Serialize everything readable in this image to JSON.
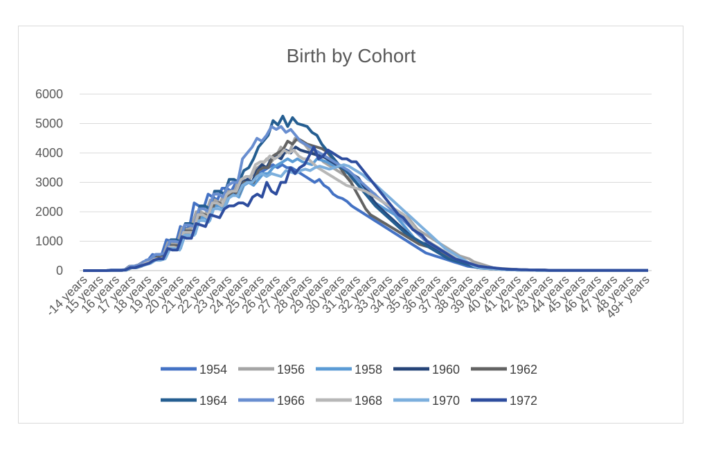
{
  "chart_data": {
    "type": "line",
    "title": "Birth by Cohort",
    "xlabel": "",
    "ylabel": "",
    "ylim": [
      0,
      6000
    ],
    "y_ticks": [
      0,
      1000,
      2000,
      3000,
      4000,
      5000,
      6000
    ],
    "grid": true,
    "legend_position": "bottom",
    "x_tick_labels": [
      "-14 years",
      "15 years",
      "16 years",
      "17 years",
      "18 years",
      "19 years",
      "20 years",
      "21 years",
      "22 years",
      "23 years",
      "24 years",
      "25 years",
      "26 years",
      "27 years",
      "28 years",
      "29 years",
      "30 years",
      "31 years",
      "32 years",
      "33 years",
      "34 years",
      "35 years",
      "36 years",
      "37 years",
      "38 years",
      "39 years",
      "40 years",
      "41 years",
      "42 years",
      "43 years",
      "44 years",
      "45 years",
      "46 years",
      "47 years",
      "48 years",
      "49+ years"
    ],
    "series": [
      {
        "name": "1954",
        "color": "#4472c4",
        "values": [
          0,
          0,
          0,
          0,
          0,
          0,
          20,
          20,
          20,
          30,
          150,
          150,
          200,
          300,
          350,
          550,
          500,
          550,
          1050,
          1000,
          900,
          1500,
          1400,
          1500,
          2300,
          2200,
          2100,
          2600,
          2500,
          2400,
          2800,
          2800,
          2700,
          3000,
          3100,
          3000,
          3200,
          3300,
          3300,
          3400,
          3500,
          3600,
          3500,
          3600,
          3500,
          3500,
          3400,
          3300,
          3200,
          3100,
          3000,
          3100,
          2900,
          2800,
          2600,
          2500,
          2450,
          2350,
          2200,
          2100,
          2000,
          1900,
          1800,
          1700,
          1600,
          1500,
          1400,
          1300,
          1200,
          1100,
          1000,
          900,
          800,
          700,
          600,
          550,
          500,
          450,
          400,
          350,
          300,
          250,
          200,
          150,
          130,
          110,
          100,
          80,
          70,
          60,
          50,
          40,
          40,
          30,
          30,
          30,
          20,
          20,
          20,
          20,
          10,
          10,
          10,
          10,
          10,
          10,
          10,
          10,
          10,
          10,
          10,
          10,
          10,
          10,
          10,
          10,
          10,
          10,
          10,
          10,
          10,
          10,
          10
        ]
      },
      {
        "name": "1956",
        "color": "#a5a5a5",
        "values": [
          0,
          0,
          0,
          0,
          0,
          0,
          20,
          20,
          20,
          30,
          150,
          150,
          200,
          300,
          350,
          500,
          450,
          500,
          950,
          900,
          900,
          1450,
          1400,
          1450,
          2000,
          2000,
          1900,
          2400,
          2400,
          2300,
          2600,
          2700,
          2600,
          3100,
          3100,
          3000,
          3300,
          3500,
          3600,
          3800,
          3700,
          3900,
          4200,
          4000,
          4100,
          4500,
          4400,
          4300,
          4100,
          4000,
          3900,
          3700,
          3600,
          3500,
          3400,
          3300,
          3200,
          3100,
          3000,
          2900,
          2800,
          2700,
          2600,
          2400,
          2300,
          2200,
          2100,
          2000,
          1900,
          1800,
          1600,
          1400,
          1300,
          1200,
          1100,
          1000,
          900,
          800,
          700,
          600,
          500,
          450,
          400,
          300,
          250,
          200,
          150,
          100,
          80,
          70,
          60,
          50,
          40,
          30,
          30,
          20,
          20,
          20,
          20,
          10,
          10,
          10,
          10,
          10,
          10,
          10,
          10,
          10,
          10,
          10,
          10,
          10,
          10,
          10,
          10,
          10,
          10,
          10,
          10,
          10,
          10
        ]
      },
      {
        "name": "1958",
        "color": "#5b9bd5",
        "values": [
          0,
          0,
          0,
          0,
          0,
          0,
          10,
          10,
          10,
          20,
          100,
          100,
          150,
          250,
          300,
          400,
          400,
          450,
          800,
          800,
          750,
          1250,
          1200,
          1250,
          1800,
          1800,
          1700,
          2200,
          2200,
          2100,
          2500,
          2600,
          2500,
          2900,
          3000,
          2900,
          3100,
          3300,
          3300,
          3500,
          3600,
          3700,
          3800,
          3700,
          3800,
          3700,
          3650,
          3600,
          3800,
          3750,
          3700,
          3600,
          3550,
          3500,
          3350,
          3250,
          3100,
          2900,
          2700,
          2500,
          2300,
          2200,
          2100,
          2000,
          1900,
          1700,
          1500,
          1300,
          1100,
          1000,
          900,
          800,
          700,
          600,
          500,
          450,
          400,
          300,
          250,
          200,
          150,
          100,
          80,
          70,
          60,
          50,
          40,
          30,
          30,
          20,
          20,
          20,
          20,
          10,
          10,
          10,
          10,
          10,
          10,
          10,
          10,
          10,
          10,
          10,
          10,
          10,
          10,
          10,
          10,
          10,
          10,
          10,
          10,
          10,
          10,
          10,
          10
        ]
      },
      {
        "name": "1960",
        "color": "#264478",
        "values": [
          0,
          0,
          0,
          0,
          0,
          0,
          10,
          10,
          10,
          20,
          100,
          100,
          150,
          250,
          300,
          450,
          450,
          500,
          850,
          850,
          800,
          1300,
          1300,
          1350,
          1900,
          1900,
          1800,
          2300,
          2300,
          2200,
          2600,
          2700,
          2600,
          3000,
          3100,
          3000,
          3400,
          3600,
          3500,
          3800,
          3900,
          3800,
          4100,
          4000,
          4200,
          4100,
          4050,
          4000,
          3950,
          3900,
          3850,
          3750,
          3650,
          3550,
          3450,
          3350,
          3250,
          3150,
          2900,
          2700,
          2400,
          2200,
          2050,
          1900,
          1750,
          1600,
          1450,
          1300,
          1150,
          1050,
          950,
          900,
          800,
          700,
          600,
          500,
          450,
          400,
          300,
          250,
          200,
          150,
          100,
          80,
          70,
          60,
          50,
          40,
          30,
          30,
          20,
          20,
          20,
          20,
          10,
          10,
          10,
          10,
          10,
          10,
          10,
          10,
          10,
          10,
          10,
          10,
          10,
          10,
          10,
          10,
          10,
          10,
          10,
          10,
          10,
          10,
          10,
          10
        ]
      },
      {
        "name": "1962",
        "color": "#636363",
        "values": [
          0,
          0,
          0,
          0,
          0,
          0,
          10,
          10,
          10,
          20,
          100,
          100,
          150,
          250,
          300,
          450,
          450,
          500,
          850,
          850,
          850,
          1350,
          1350,
          1350,
          1900,
          1900,
          1800,
          2300,
          2300,
          2200,
          2600,
          2700,
          2600,
          3000,
          3000,
          3000,
          3400,
          3500,
          3500,
          3900,
          4000,
          4100,
          4400,
          4300,
          4500,
          4400,
          4300,
          4250,
          4200,
          4150,
          4050,
          3850,
          3650,
          3450,
          3200,
          3000,
          2700,
          2400,
          2100,
          1900,
          1800,
          1700,
          1600,
          1500,
          1400,
          1300,
          1200,
          1100,
          1000,
          900,
          850,
          800,
          700,
          600,
          550,
          500,
          400,
          350,
          300,
          250,
          200,
          150,
          100,
          80,
          70,
          60,
          50,
          40,
          30,
          30,
          20,
          20,
          20,
          20,
          10,
          10,
          10,
          10,
          10,
          10,
          10,
          10,
          10,
          10,
          10,
          10,
          10,
          10,
          10,
          10,
          10,
          10,
          10,
          10,
          10,
          10,
          10
        ]
      },
      {
        "name": "1964",
        "color": "#255e91",
        "values": [
          0,
          0,
          0,
          0,
          0,
          0,
          10,
          10,
          10,
          20,
          150,
          150,
          200,
          350,
          400,
          550,
          550,
          600,
          1050,
          1050,
          1000,
          1600,
          1600,
          1550,
          2200,
          2200,
          2100,
          2700,
          2700,
          2600,
          3100,
          3100,
          3000,
          3400,
          3500,
          3800,
          4200,
          4400,
          4600,
          5100,
          4950,
          5250,
          4900,
          5200,
          5000,
          4950,
          4900,
          4700,
          4600,
          4300,
          4100,
          3900,
          3700,
          3500,
          3400,
          3200,
          3000,
          2800,
          2600,
          2400,
          2200,
          2050,
          1900,
          1750,
          1600,
          1450,
          1300,
          1200,
          1100,
          1000,
          900,
          800,
          700,
          600,
          500,
          400,
          350,
          300,
          250,
          200,
          150,
          100,
          80,
          70,
          60,
          50,
          40,
          30,
          30,
          20,
          20,
          20,
          20,
          10,
          10,
          10,
          10,
          10,
          10,
          10,
          10,
          10,
          10,
          10,
          10,
          10,
          10,
          10,
          10,
          10,
          10,
          10,
          10,
          10,
          10,
          10,
          10
        ]
      },
      {
        "name": "1966",
        "color": "#698ed0",
        "values": [
          0,
          0,
          0,
          0,
          0,
          0,
          20,
          20,
          20,
          30,
          150,
          150,
          200,
          350,
          400,
          550,
          550,
          600,
          1000,
          1000,
          950,
          1550,
          1550,
          1500,
          2100,
          2100,
          2000,
          2600,
          2600,
          2500,
          2900,
          3000,
          3000,
          3800,
          4000,
          4200,
          4500,
          4400,
          4600,
          4900,
          4800,
          4900,
          4700,
          4800,
          4600,
          4400,
          4300,
          4200,
          4100,
          4000,
          3900,
          3800,
          3700,
          3600,
          3500,
          3400,
          3250,
          3100,
          2950,
          2800,
          2650,
          2500,
          2350,
          2200,
          2050,
          1900,
          1750,
          1600,
          1450,
          1300,
          1150,
          1000,
          900,
          800,
          700,
          600,
          500,
          400,
          350,
          300,
          250,
          200,
          150,
          100,
          80,
          70,
          60,
          50,
          40,
          30,
          30,
          20,
          20,
          20,
          20,
          10,
          10,
          10,
          10,
          10,
          10,
          10,
          10,
          10,
          10,
          10,
          10,
          10,
          10,
          10,
          10,
          10,
          10,
          10,
          10,
          10,
          10,
          10
        ]
      },
      {
        "name": "1968",
        "color": "#b7b7b7",
        "values": [
          0,
          0,
          0,
          0,
          0,
          0,
          10,
          10,
          10,
          20,
          100,
          100,
          150,
          250,
          300,
          400,
          400,
          450,
          800,
          800,
          750,
          1300,
          1300,
          1300,
          1900,
          1900,
          1800,
          2300,
          2300,
          2200,
          2600,
          2700,
          2700,
          3100,
          3200,
          3200,
          3600,
          3700,
          3700,
          3900,
          3800,
          3900,
          4100,
          4000,
          4100,
          3900,
          3800,
          3800,
          3650,
          3500,
          3400,
          3300,
          3200,
          3100,
          3000,
          2900,
          2850,
          2800,
          2750,
          2700,
          2600,
          2500,
          2400,
          2300,
          2200,
          2100,
          2000,
          1900,
          1700,
          1500,
          1300,
          1150,
          1000,
          900,
          800,
          700,
          600,
          500,
          400,
          350,
          300,
          250,
          200,
          150,
          100,
          80,
          60,
          50,
          40,
          30,
          30,
          20,
          20,
          20,
          20,
          10,
          10,
          10,
          10,
          10,
          10,
          10,
          10,
          10,
          10,
          10,
          10,
          10,
          10,
          10,
          10,
          10,
          10,
          10,
          10,
          10,
          10,
          10,
          10
        ]
      },
      {
        "name": "1970",
        "color": "#7cafdd",
        "values": [
          0,
          0,
          0,
          0,
          0,
          0,
          10,
          10,
          10,
          20,
          100,
          100,
          150,
          200,
          250,
          350,
          350,
          400,
          750,
          750,
          700,
          1200,
          1200,
          1200,
          1700,
          1700,
          1650,
          2100,
          2100,
          2050,
          2450,
          2550,
          2550,
          2900,
          3000,
          3000,
          3200,
          3300,
          3200,
          3300,
          3250,
          3200,
          3400,
          3350,
          3300,
          3400,
          3450,
          3400,
          3500,
          3550,
          3500,
          3450,
          3500,
          3550,
          3600,
          3550,
          3450,
          3350,
          3250,
          3100,
          3000,
          2850,
          2700,
          2550,
          2400,
          2250,
          2100,
          1950,
          1800,
          1650,
          1500,
          1350,
          1200,
          1050,
          900,
          750,
          650,
          550,
          450,
          350,
          250,
          150,
          100,
          80,
          70,
          60,
          50,
          40,
          30,
          30,
          20,
          20,
          20,
          20,
          10,
          10,
          10,
          10,
          10,
          10,
          10,
          10,
          10,
          10,
          10,
          10,
          10,
          10,
          10,
          10,
          10,
          10,
          10,
          10,
          10,
          10,
          10,
          10
        ]
      },
      {
        "name": "1972",
        "color": "#2e4d9e",
        "values": [
          0,
          0,
          0,
          0,
          0,
          0,
          10,
          10,
          10,
          20,
          100,
          100,
          150,
          200,
          250,
          350,
          400,
          400,
          750,
          700,
          700,
          1150,
          1100,
          1100,
          1600,
          1550,
          1500,
          1900,
          1850,
          1800,
          2100,
          2200,
          2200,
          2300,
          2300,
          2200,
          2500,
          2600,
          2500,
          3000,
          2700,
          2600,
          3000,
          3000,
          3500,
          3300,
          3500,
          3600,
          3900,
          4200,
          3800,
          3900,
          4100,
          4000,
          3900,
          3800,
          3800,
          3700,
          3700,
          3500,
          3300,
          3100,
          2900,
          2700,
          2500,
          2300,
          2100,
          1900,
          1800,
          1600,
          1400,
          1300,
          1200,
          1000,
          900,
          800,
          700,
          600,
          500,
          400,
          350,
          300,
          250,
          200,
          150,
          130,
          110,
          100,
          80,
          60,
          50,
          40,
          40,
          30,
          30,
          20,
          20,
          20,
          20,
          10,
          10,
          10,
          10,
          10,
          10,
          10,
          10,
          10,
          10,
          10,
          10,
          10,
          10,
          10,
          10,
          10,
          10,
          10,
          10,
          10,
          10
        ]
      }
    ]
  }
}
